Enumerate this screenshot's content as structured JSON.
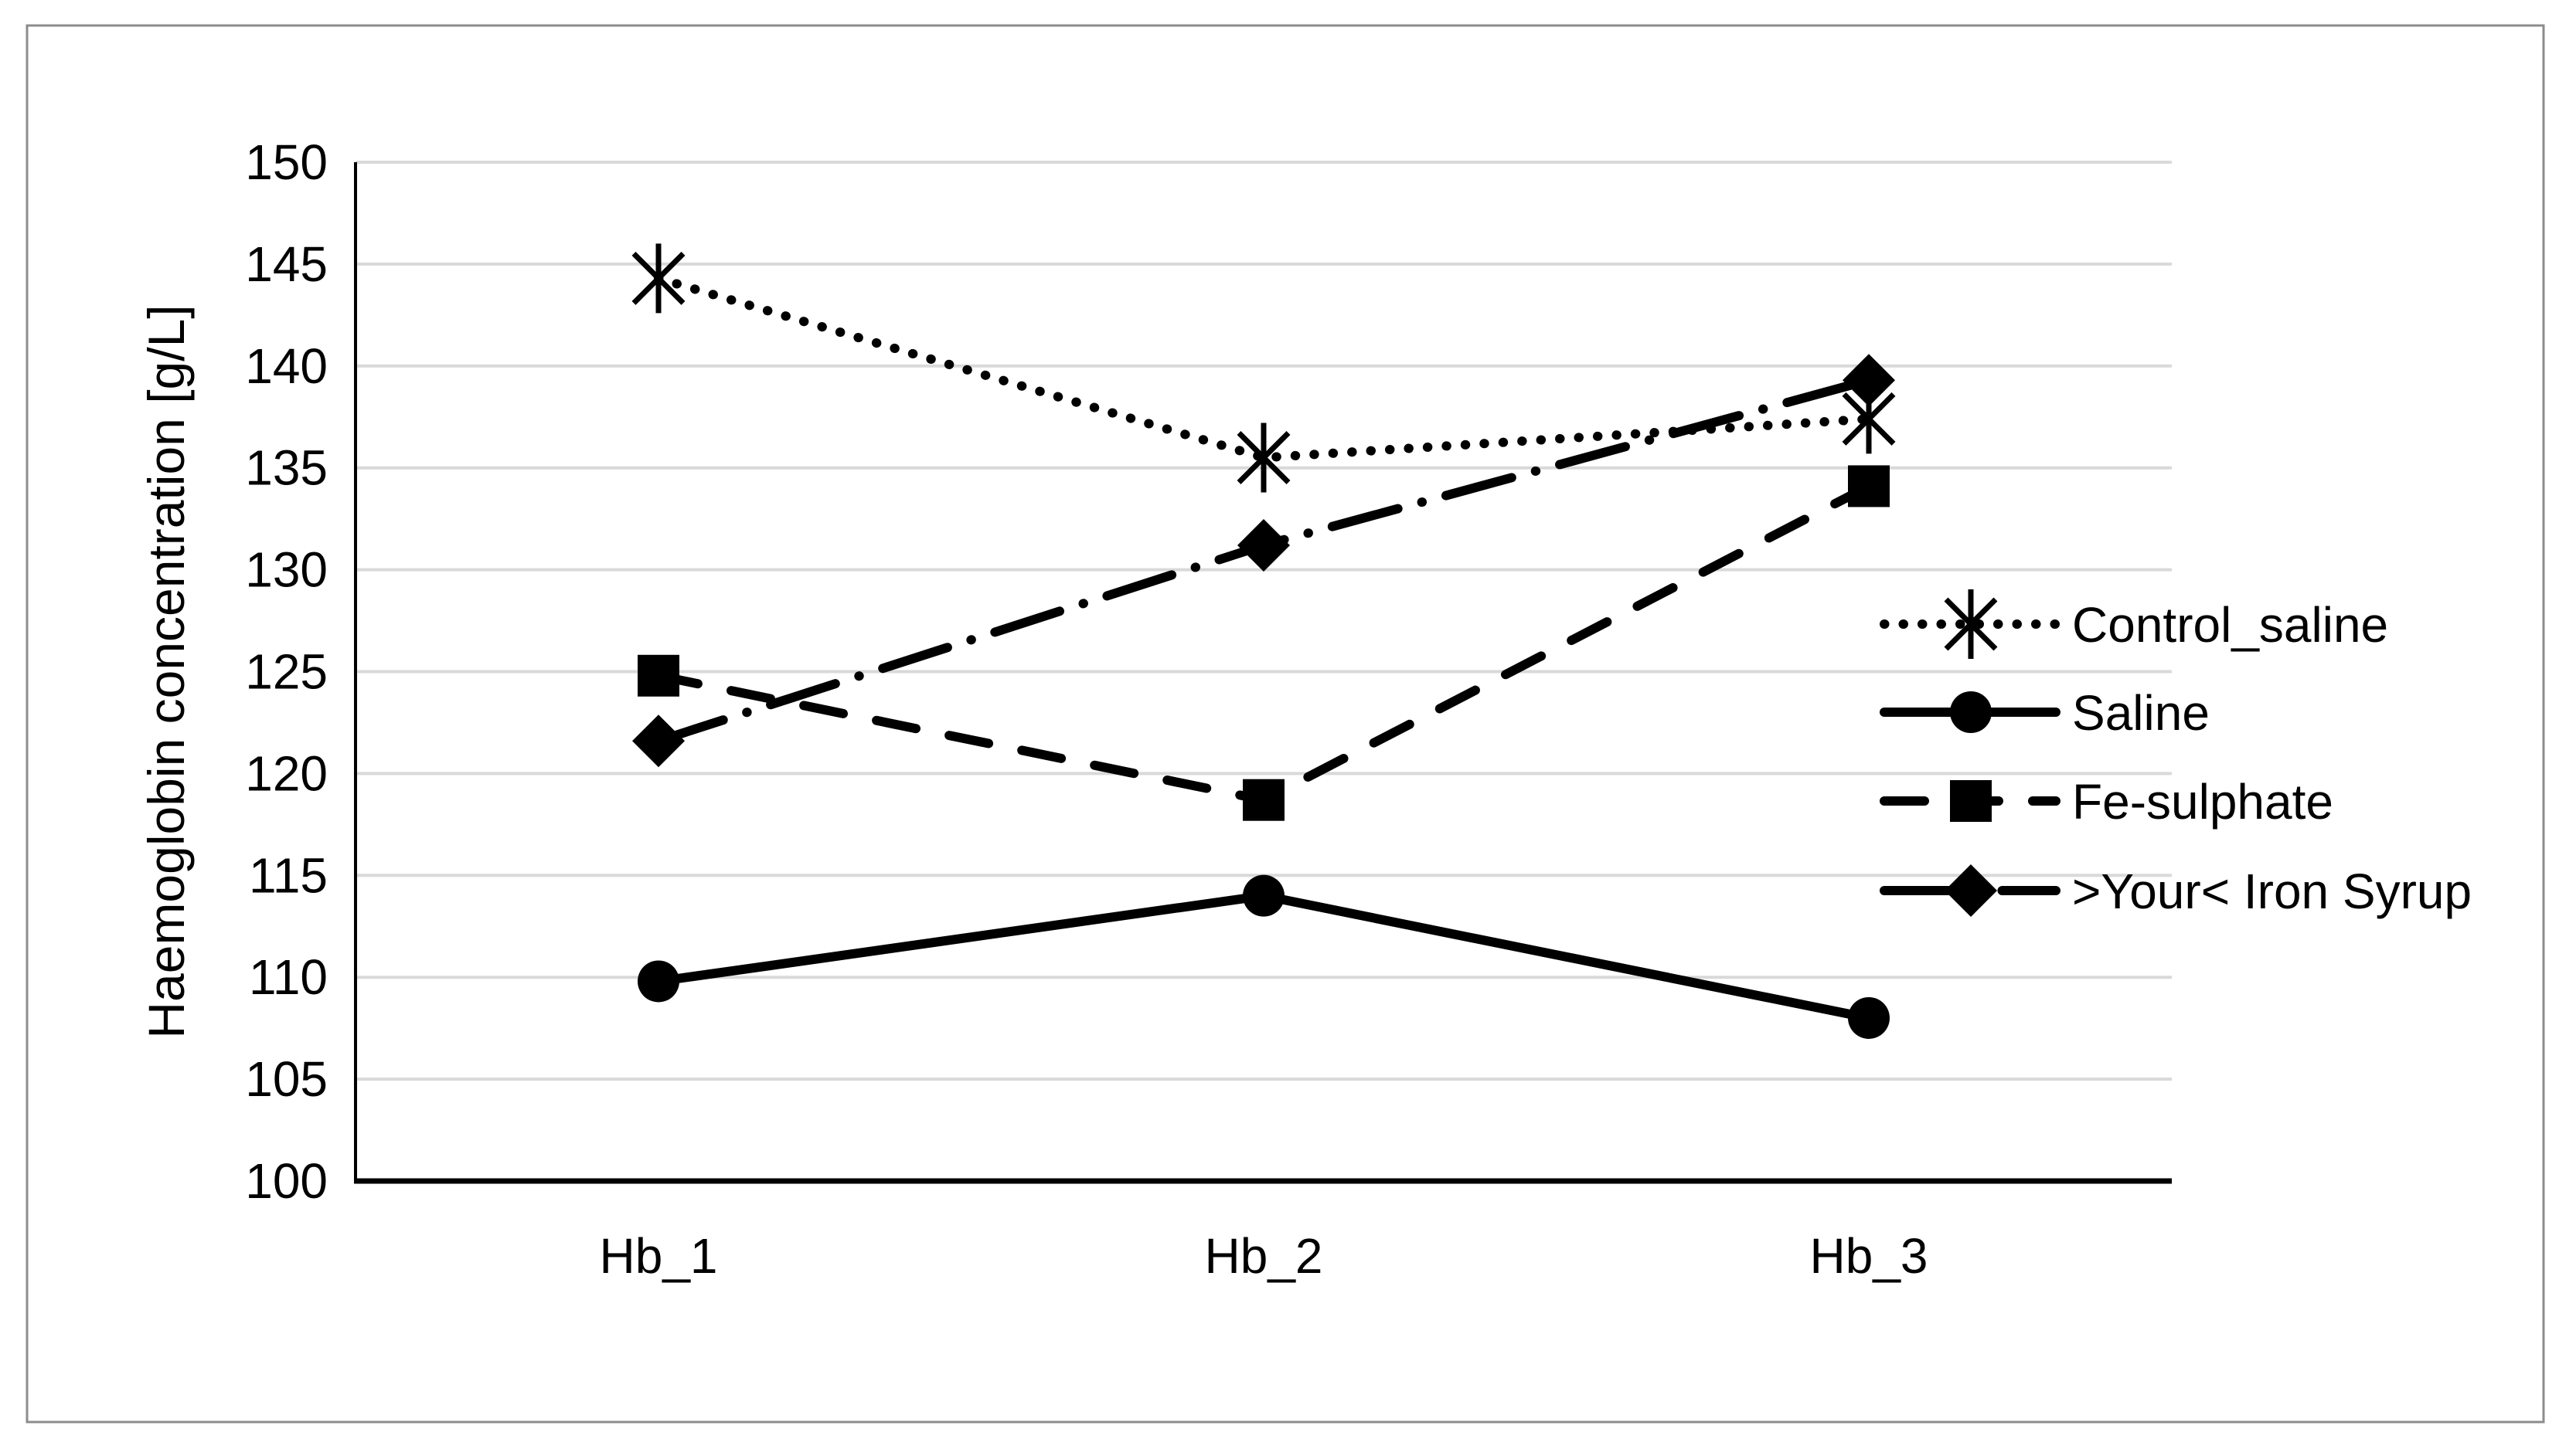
{
  "page": {
    "background_color": "#FFFFFF",
    "border_color": "#8C8C8C"
  },
  "chart_data": {
    "type": "line",
    "title": "",
    "xlabel": "",
    "ylabel": "Haemoglobin concentration [g/L]",
    "categories": [
      "Hb_1",
      "Hb_2",
      "Hb_3"
    ],
    "ylim": [
      100,
      150
    ],
    "ytick_step": 5,
    "yticks": [
      100,
      105,
      110,
      115,
      120,
      125,
      130,
      135,
      140,
      145,
      150
    ],
    "grid": "horizontal",
    "gridline_color": "#D9D9D9",
    "axis_color": "#000000",
    "series_color": "#000000",
    "legend_position": "right",
    "series": [
      {
        "name": "Control_saline",
        "values": [
          144.3,
          135.5,
          137.4
        ],
        "line_style": "dotted",
        "marker": "star6"
      },
      {
        "name": "Saline",
        "values": [
          109.8,
          114.0,
          108.0
        ],
        "line_style": "solid",
        "marker": "circle"
      },
      {
        "name": "Fe-sulphate",
        "values": [
          124.8,
          118.7,
          134.1
        ],
        "line_style": "dashed",
        "marker": "square"
      },
      {
        "name": ">Your< Iron Syrup",
        "values": [
          121.6,
          131.2,
          139.3
        ],
        "line_style": "dash-dot",
        "marker": "diamond"
      }
    ]
  }
}
